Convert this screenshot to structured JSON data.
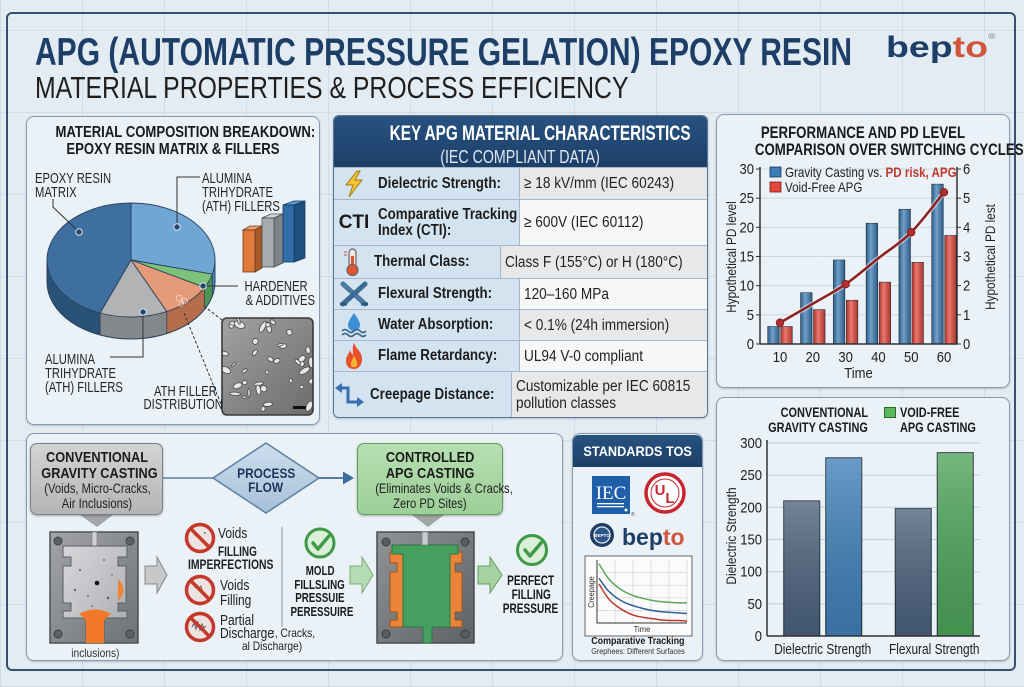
{
  "header": {
    "title": "APG (AUTOMATIC PRESSURE GELATION) EPOXY RESIN",
    "subtitle": "MATERIAL PROPERTIES & PROCESS EFFICIENCY",
    "logo": {
      "part1": "bep",
      "part2": "to",
      "mark": "®"
    }
  },
  "colors": {
    "title_blue": "#1d3f67",
    "logo_accent": "#d0563b",
    "table_header": "#1f4470",
    "gravity_blue": "#3d7cb4",
    "apg_red": "#e2473b",
    "apg_green": "#4da45a",
    "conventional_slate": "#4b627d"
  },
  "composition": {
    "title_lines": [
      "MATERIAL COMPOSITION BREAKDOWN:",
      "EPOXY RESIN MATRIX & FILLERS"
    ],
    "label_epoxy": [
      "EPOXY RESIN",
      "MATRIX"
    ],
    "label_ath_top": [
      "ALUMINA",
      "TRIHYDRATE",
      "(ATH) FILLERS"
    ],
    "label_hardener": [
      "HARDENER",
      "& ADDITIVES"
    ],
    "label_ath_bottom": [
      "ALUMINA",
      "TRIHYDRATE",
      "(ATH) FILLERS"
    ],
    "label_distribution": [
      "ATH FILLER",
      "DISTRIBUTION"
    ]
  },
  "characteristics": {
    "title": "KEY APG MATERIAL CHARACTERISTICS",
    "subtitle": "(IEC COMPLIANT DATA)",
    "rows": [
      {
        "icon": "lightning-icon",
        "label": [
          "Dielectric Strength:"
        ],
        "value": [
          "≥ 18 kV/mm (IEC 60243)"
        ]
      },
      {
        "icon": "cti-icon",
        "icon_text": "CTI",
        "label": [
          "Comparative Tracking",
          "Index (CTI):"
        ],
        "value": [
          "≥ 600V (IEC 60112)"
        ]
      },
      {
        "icon": "thermometer-icon",
        "label": [
          "Thermal Class:"
        ],
        "value": [
          "Class F (155°C) or H (180°C)"
        ]
      },
      {
        "icon": "crossed-beams-icon",
        "label": [
          "Flexural Strength:"
        ],
        "value": [
          "120–160 MPa"
        ]
      },
      {
        "icon": "water-drop-icon",
        "label": [
          "Water Absorption:"
        ],
        "value": [
          "< 0.1% (24h immersion)"
        ]
      },
      {
        "icon": "flame-icon",
        "label": [
          "Flame Retardancy:"
        ],
        "value": [
          "UL94 V-0 compliant"
        ]
      },
      {
        "icon": "creepage-arrows-icon",
        "label": [
          "Creepage Distance:"
        ],
        "value": [
          "Customizable per IEC 60815",
          "pollution classes"
        ]
      }
    ]
  },
  "process": {
    "conventional": {
      "title": [
        "CONVENTIONAL",
        "GRAVITY CASTING"
      ],
      "details": [
        "(Voids, Micro-Cracks,",
        "Air Inclusions)"
      ],
      "mold_caption": "inclusions)"
    },
    "flow": [
      "PROCESS",
      "FLOW"
    ],
    "controlled": {
      "title": [
        "CONTROLLED",
        "APG CASTING"
      ],
      "details": [
        "(Eliminates Voids & Cracks,",
        "Zero PD Sites)"
      ]
    },
    "defects": [
      {
        "icon": "no-voids-icon",
        "lines": [
          "Voids",
          "FILLING",
          "IMPERFECTIONS"
        ]
      },
      {
        "icon": "no-voids-filling-icon",
        "lines": [
          "Voids",
          "Filling"
        ]
      },
      {
        "icon": "no-partial-discharge-icon",
        "lines": [
          "Partial",
          "Discharge"
        ]
      }
    ],
    "overflow_text": [
      ":, Cracks,",
      "al Discharge)"
    ],
    "mold_step": [
      "MOLD",
      "FILLSLING",
      "PRESSUIE",
      "PERESSUIRE"
    ],
    "result": [
      "PERFECT",
      "FILLING",
      "PRESSURE"
    ]
  },
  "standards": {
    "title": "STANDARDS TOS",
    "logos": {
      "iec": "IEC",
      "ul_u": "U",
      "ul_l": "L",
      "bepto_badge": "BEPTO",
      "bepto_part1": "bep",
      "bepto_part2": "to"
    }
  },
  "chart_data": [
    {
      "type": "pie",
      "title": "MATERIAL COMPOSITION BREAKDOWN: EPOXY RESIN MATRIX & FILLERS",
      "start_angle": -90,
      "slices": [
        {
          "label": "Alumina Trihydrate (ATH) Fillers",
          "value": 29,
          "color": "#6fa6d4",
          "side": "#4f86b6"
        },
        {
          "label": "Hardener & Additives",
          "value": 4,
          "color": "#7cc27a",
          "side": "#4d9550"
        },
        {
          "label": "ATH Filler Distribution",
          "value": 10,
          "color": "#e59b79",
          "side": "#b56d4a"
        },
        {
          "label": "Alumina Trihydrate (ATH) Fillers",
          "value": 13,
          "color": "#b1b3b5",
          "side": "#85888b"
        },
        {
          "label": "Epoxy Resin Matrix",
          "value": 44,
          "color": "#3f6f9e",
          "side": "#2b5277"
        }
      ]
    },
    {
      "type": "bar+line",
      "title": "PERFORMANCE AND PD LEVEL COMPARISON OVER SWITCHING CYCLES",
      "title_lines": [
        "PERFORMANCE AND PD LEVEL",
        "COMPARISON OVER SWITCHING CYCLES"
      ],
      "categories": [
        10,
        20,
        30,
        40,
        50,
        60
      ],
      "xlabel": "Time",
      "ylabel": "Hypothetical PD level",
      "y2label": "Hypothetical PD lest",
      "ylim": [
        0,
        30
      ],
      "yticks": [
        0,
        5,
        10,
        15,
        20,
        25,
        30
      ],
      "y2lim": [
        0,
        6
      ],
      "y2ticks": [
        0,
        1,
        2,
        3,
        4,
        5,
        6
      ],
      "grid": true,
      "series": [
        {
          "name": "Gravity Casting",
          "type": "bar",
          "axis": "left",
          "color": "#3d7cb4",
          "values": [
            3.0,
            8.8,
            14.4,
            20.7,
            23.1,
            27.4
          ]
        },
        {
          "name": "Void-Free APG",
          "type": "bar",
          "axis": "left",
          "color": "#e2473b",
          "values": [
            3.0,
            5.9,
            7.5,
            10.6,
            14.0,
            18.6
          ]
        },
        {
          "name": "PD risk, APG",
          "type": "line",
          "axis": "right",
          "color": "#8e2323",
          "values": [
            0.73,
            1.38,
            2.05,
            2.94,
            3.83,
            5.2
          ],
          "markers": [
            true,
            false,
            true,
            false,
            true,
            true
          ]
        }
      ],
      "legend": [
        {
          "text": "Gravity Casting vs. ",
          "highlight": "PD risk, APG",
          "highlight_color": "#c0392b",
          "color": "#3d7cb4"
        },
        {
          "text": "Void-Free APG",
          "color": "#e2473b"
        }
      ],
      "legend_position": "upper left"
    },
    {
      "type": "bar",
      "categories": [
        "Dielectric Strength",
        "Flexural Strength"
      ],
      "ylabel": "Dielectric Strength",
      "xlabel": "",
      "ylim": [
        0,
        300
      ],
      "yticks": [
        0,
        50,
        100,
        150,
        200,
        250,
        300
      ],
      "grid": true,
      "series": [
        {
          "name": "Conventional Gravity Casting",
          "values": [
            210,
            198
          ],
          "colors": [
            "#4b627d",
            "#4b627d"
          ]
        },
        {
          "name": "Void-Free APG Casting",
          "values": [
            277,
            285
          ],
          "colors": [
            "#3f80b8",
            "#4da45a"
          ]
        }
      ],
      "legend": [
        {
          "lines": [
            "CONVENTIONAL",
            "GRAVITY CASTING"
          ],
          "swatch": null
        },
        {
          "lines": [
            "VOID-FREE",
            "APG CASTING"
          ],
          "swatch": "#5cb85c"
        }
      ],
      "legend_position": "top"
    },
    {
      "type": "line",
      "title": "Comparative Tracking",
      "subtitle": "Grephees: Different Surfaces",
      "xlabel": "Time",
      "ylabel": "Creepage",
      "x": [
        0,
        1,
        2,
        3,
        4,
        5,
        6,
        7,
        8,
        9,
        10
      ],
      "series": [
        {
          "name": "green",
          "color": "#5aa55a",
          "values": [
            94,
            72,
            58,
            49,
            43,
            39,
            36,
            34,
            33,
            32,
            32
          ]
        },
        {
          "name": "blue",
          "color": "#2f5f93",
          "values": [
            71,
            52,
            40,
            32,
            27,
            23,
            20,
            18,
            17,
            16,
            15
          ]
        },
        {
          "name": "red",
          "color": "#c0392b",
          "values": [
            62,
            40,
            27,
            18,
            12,
            9,
            7,
            5,
            4,
            4,
            3
          ]
        }
      ]
    }
  ]
}
